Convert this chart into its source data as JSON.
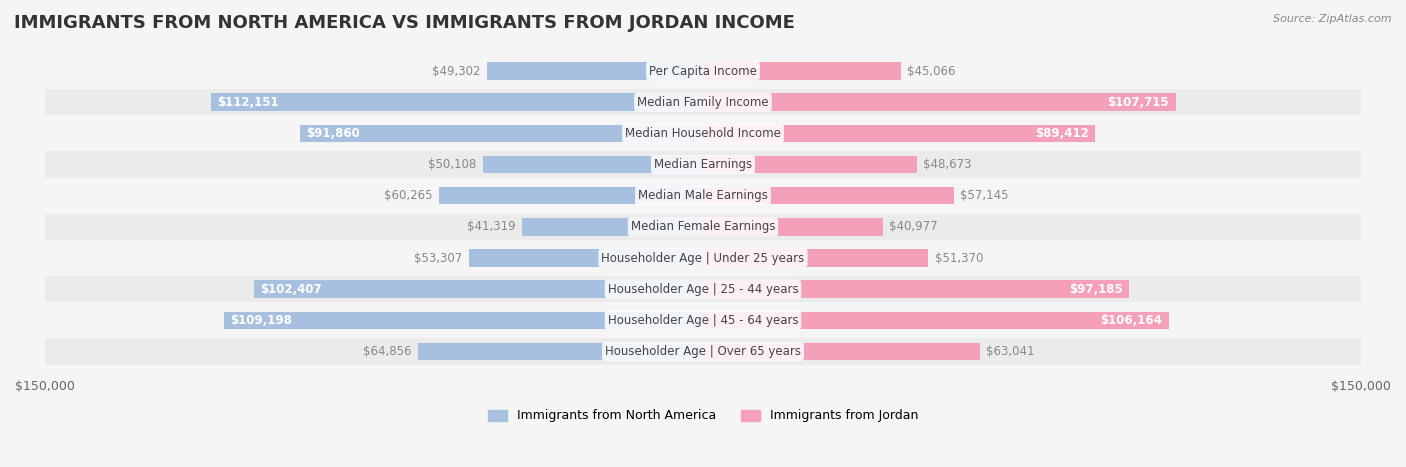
{
  "title": "IMMIGRANTS FROM NORTH AMERICA VS IMMIGRANTS FROM JORDAN INCOME",
  "source": "Source: ZipAtlas.com",
  "categories": [
    "Per Capita Income",
    "Median Family Income",
    "Median Household Income",
    "Median Earnings",
    "Median Male Earnings",
    "Median Female Earnings",
    "Householder Age | Under 25 years",
    "Householder Age | 25 - 44 years",
    "Householder Age | 45 - 64 years",
    "Householder Age | Over 65 years"
  ],
  "north_america_values": [
    49302,
    112151,
    91860,
    50108,
    60265,
    41319,
    53307,
    102407,
    109198,
    64856
  ],
  "jordan_values": [
    45066,
    107715,
    89412,
    48673,
    57145,
    40977,
    51370,
    97185,
    106164,
    63041
  ],
  "north_america_labels": [
    "$49,302",
    "$112,151",
    "$91,860",
    "$50,108",
    "$60,265",
    "$41,319",
    "$53,307",
    "$102,407",
    "$109,198",
    "$64,856"
  ],
  "jordan_labels": [
    "$45,066",
    "$107,715",
    "$89,412",
    "$48,673",
    "$57,145",
    "$40,977",
    "$51,370",
    "$97,185",
    "$106,164",
    "$63,041"
  ],
  "north_america_color": "#a8c0e0",
  "jordan_color": "#f4a0b8",
  "north_america_label_color_inside": "#ffffff",
  "jordan_label_color_inside": "#ffffff",
  "north_america_label_color_outside": "#888888",
  "jordan_label_color_outside": "#888888",
  "max_value": 150000,
  "legend_north_america": "Immigrants from North America",
  "legend_jordan": "Immigrants from Jordan",
  "background_color": "#f5f5f5",
  "row_background_light": "#f5f5f5",
  "row_background_dark": "#ebebeb",
  "title_fontsize": 13,
  "label_fontsize": 8.5,
  "category_fontsize": 8.5,
  "inside_threshold": 20000,
  "north_america_inside": [
    false,
    true,
    true,
    false,
    false,
    false,
    false,
    true,
    true,
    false
  ],
  "jordan_inside": [
    false,
    true,
    true,
    false,
    false,
    false,
    false,
    true,
    true,
    false
  ]
}
